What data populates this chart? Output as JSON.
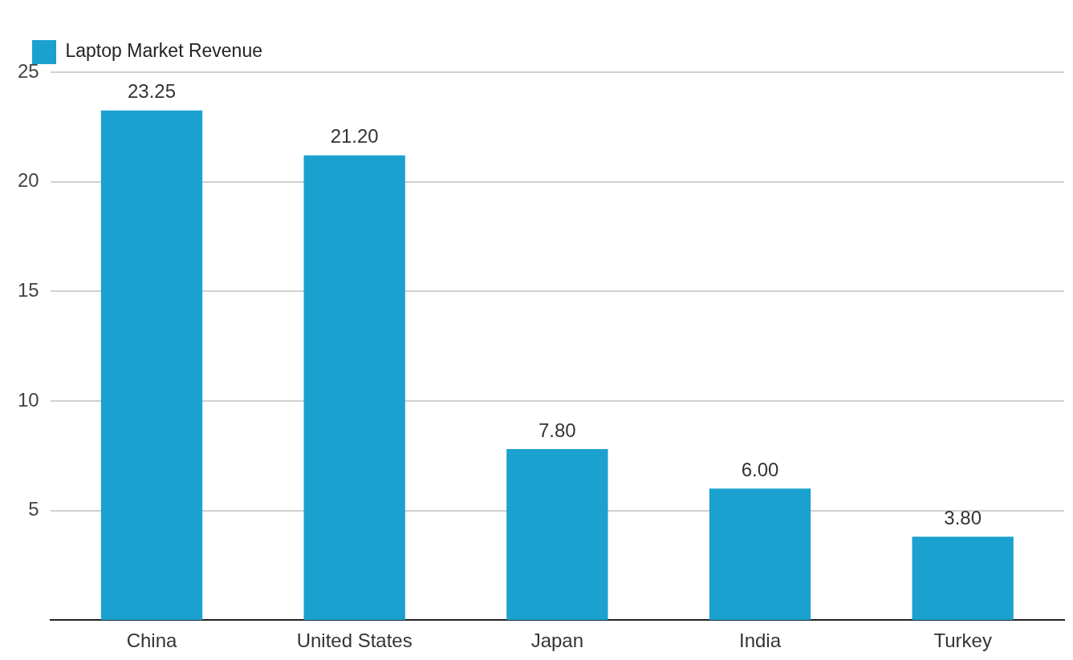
{
  "chart_data": {
    "type": "bar",
    "categories": [
      "China",
      "United States",
      "Japan",
      "India",
      "Turkey"
    ],
    "series": [
      {
        "name": "Laptop Market Revenue",
        "color": "#1ba1cf",
        "values": [
          23.25,
          21.2,
          7.8,
          6.0,
          3.8
        ],
        "value_labels": [
          "23.25",
          "21.20",
          "7.80",
          "6.00",
          "3.80"
        ]
      }
    ],
    "ylim": [
      0,
      25
    ],
    "yticks": [
      5,
      10,
      15,
      20,
      25
    ],
    "grid": "y",
    "legend": "top left"
  }
}
